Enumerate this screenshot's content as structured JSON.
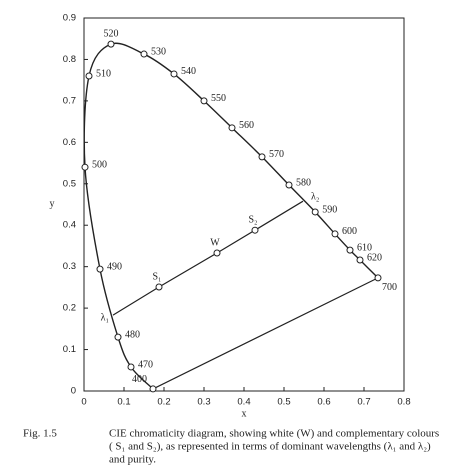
{
  "chart_data": {
    "type": "line",
    "x_label": "x",
    "y_label": "y",
    "xlim": [
      0,
      0.8
    ],
    "ylim": [
      0,
      0.9
    ],
    "xticks": [
      0,
      0.1,
      0.2,
      0.3,
      0.4,
      0.5,
      0.6,
      0.7,
      0.8
    ],
    "yticks": [
      0,
      0.1,
      0.2,
      0.3,
      0.4,
      0.5,
      0.6,
      0.7,
      0.8,
      0.9
    ],
    "color": "#222222",
    "series": [
      {
        "x": [
          0.1725,
          0.1175,
          0.085,
          0.04,
          0.0025,
          0.0125,
          0.0675,
          0.15,
          0.225,
          0.3,
          0.37,
          0.445,
          0.5125,
          0.578,
          0.6275,
          0.665,
          0.69,
          0.735
        ],
        "values": [
          0.005,
          0.058,
          0.13,
          0.294,
          0.54,
          0.76,
          0.837,
          0.813,
          0.765,
          0.7,
          0.635,
          0.565,
          0.497,
          0.432,
          0.379,
          0.34,
          0.316,
          0.273
        ],
        "labels": [
          "400",
          "470",
          "480",
          "490",
          "500",
          "510",
          "520",
          "530",
          "540",
          "550",
          "560",
          "570",
          "580",
          "590",
          "600",
          "610",
          "620",
          "700"
        ]
      },
      {
        "x": [
          0.0725,
          0.1875,
          0.3325,
          0.4275,
          0.5475
        ],
        "values": [
          0.183,
          0.251,
          0.333,
          0.388,
          0.458
        ],
        "labels": [
          "λ₁",
          "S₁",
          "W",
          "S₂",
          "λ₂"
        ],
        "markers": [
          false,
          true,
          true,
          true,
          false
        ]
      }
    ]
  },
  "caption": {
    "label": "Fig. 1.5",
    "lines": [
      "CIE chromaticity diagram, showing white (W) and complementary colours",
      "( S₁ and S₂), as represented in terms of dominant wavelengths (λ₁ and λ₂)",
      "and purity."
    ]
  }
}
